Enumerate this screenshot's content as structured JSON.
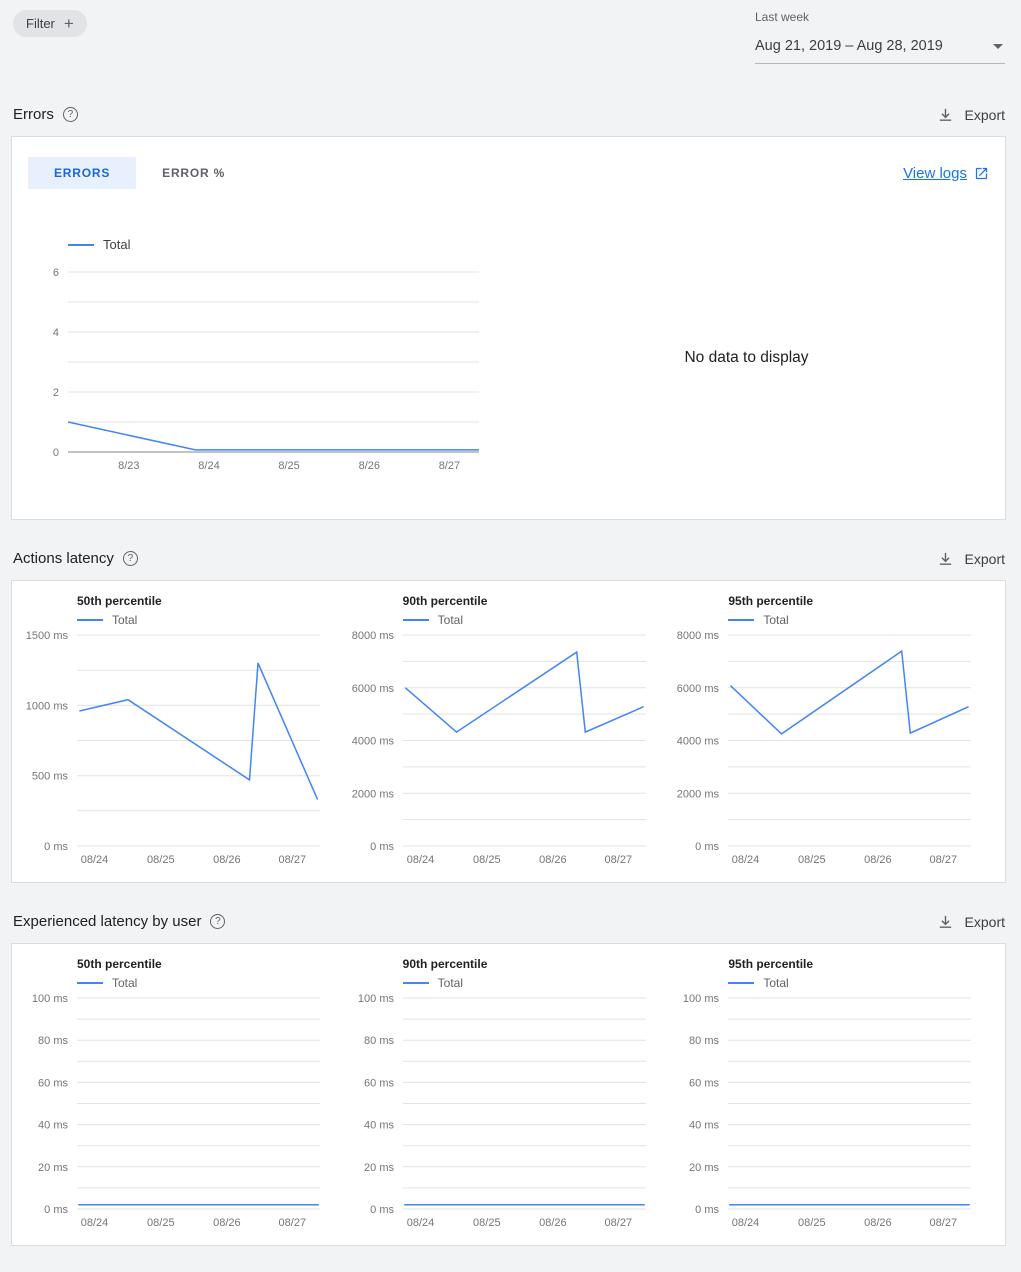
{
  "toolbar": {
    "filter_label": "Filter",
    "period_label": "Last week",
    "date_range": "Aug 21, 2019 – Aug 28, 2019"
  },
  "sections": {
    "errors": {
      "title": "Errors",
      "export_label": "Export",
      "tab_errors": "ERRORS",
      "tab_error_percent": "ERROR %",
      "view_logs": "View logs",
      "no_data": "No data to display"
    },
    "actions_latency": {
      "title": "Actions latency",
      "export_label": "Export"
    },
    "experienced_latency": {
      "title": "Experienced latency by user",
      "export_label": "Export"
    }
  },
  "colors": {
    "accent_blue": "#4285f4",
    "link_blue": "#1a73e8",
    "tab_active_bg": "#e8f0fe",
    "tab_active_text": "#1967d2"
  },
  "chart_data": [
    {
      "id": "errors-total",
      "type": "line",
      "title": "Errors",
      "ylim": [
        0,
        6
      ],
      "ylabel_step": 2,
      "ygrid_step": 1,
      "yunit": "",
      "axis_line": true,
      "x_labels": [
        "8/23",
        "8/24",
        "8/25",
        "8/26",
        "8/27"
      ],
      "x_pos": [
        0.148,
        0.343,
        0.538,
        0.733,
        0.928
      ],
      "series": [
        {
          "name": "Total",
          "color": "#4285f4",
          "points": [
            [
              0,
              1.0
            ],
            [
              0.31,
              0.07
            ],
            [
              1,
              0.07
            ]
          ]
        }
      ]
    },
    {
      "id": "actions-latency-p50",
      "type": "line",
      "title": "50th percentile",
      "ylim": [
        0,
        1500
      ],
      "ylabel_step": 500,
      "ygrid_step": 250,
      "yunit": " ms",
      "axis_line": false,
      "x_labels": [
        "08/24",
        "08/25",
        "08/26",
        "08/27"
      ],
      "x_pos": [
        0.072,
        0.345,
        0.617,
        0.886
      ],
      "series": [
        {
          "name": "Total",
          "color": "#4285f4",
          "points": [
            [
              0.01,
              960
            ],
            [
              0.21,
              1040
            ],
            [
              0.71,
              470
            ],
            [
              0.745,
              1300
            ],
            [
              0.99,
              330
            ]
          ]
        }
      ]
    },
    {
      "id": "actions-latency-p90",
      "type": "line",
      "title": "90th percentile",
      "ylim": [
        0,
        8000
      ],
      "ylabel_step": 2000,
      "ygrid_step": 1000,
      "yunit": " ms",
      "axis_line": false,
      "x_labels": [
        "08/24",
        "08/25",
        "08/26",
        "08/27"
      ],
      "x_pos": [
        0.072,
        0.345,
        0.617,
        0.886
      ],
      "series": [
        {
          "name": "Total",
          "color": "#4285f4",
          "points": [
            [
              0.01,
              6000
            ],
            [
              0.22,
              4320
            ],
            [
              0.715,
              7350
            ],
            [
              0.75,
              4320
            ],
            [
              0.99,
              5280
            ]
          ]
        }
      ]
    },
    {
      "id": "actions-latency-p95",
      "type": "line",
      "title": "95th percentile",
      "ylim": [
        0,
        8000
      ],
      "ylabel_step": 2000,
      "ygrid_step": 1000,
      "yunit": " ms",
      "axis_line": false,
      "x_labels": [
        "08/24",
        "08/25",
        "08/26",
        "08/27"
      ],
      "x_pos": [
        0.072,
        0.345,
        0.617,
        0.886
      ],
      "series": [
        {
          "name": "Total",
          "color": "#4285f4",
          "points": [
            [
              0.01,
              6080
            ],
            [
              0.22,
              4250
            ],
            [
              0.715,
              7390
            ],
            [
              0.75,
              4280
            ],
            [
              0.99,
              5280
            ]
          ]
        }
      ]
    },
    {
      "id": "experienced-latency-p50",
      "type": "line",
      "title": "50th percentile",
      "ylim": [
        0,
        100
      ],
      "ylabel_step": 20,
      "ygrid_step": 10,
      "yunit": " ms",
      "axis_line": false,
      "x_labels": [
        "08/24",
        "08/25",
        "08/26",
        "08/27"
      ],
      "x_pos": [
        0.072,
        0.345,
        0.617,
        0.886
      ],
      "series": [
        {
          "name": "Total",
          "color": "#4285f4",
          "points": [
            [
              0.005,
              2
            ],
            [
              0.995,
              2
            ]
          ]
        }
      ]
    },
    {
      "id": "experienced-latency-p90",
      "type": "line",
      "title": "90th percentile",
      "ylim": [
        0,
        100
      ],
      "ylabel_step": 20,
      "ygrid_step": 10,
      "yunit": " ms",
      "axis_line": false,
      "x_labels": [
        "08/24",
        "08/25",
        "08/26",
        "08/27"
      ],
      "x_pos": [
        0.072,
        0.345,
        0.617,
        0.886
      ],
      "series": [
        {
          "name": "Total",
          "color": "#4285f4",
          "points": [
            [
              0.005,
              2
            ],
            [
              0.995,
              2
            ]
          ]
        }
      ]
    },
    {
      "id": "experienced-latency-p95",
      "type": "line",
      "title": "95th percentile",
      "ylim": [
        0,
        100
      ],
      "ylabel_step": 20,
      "ygrid_step": 10,
      "yunit": " ms",
      "axis_line": false,
      "x_labels": [
        "08/24",
        "08/25",
        "08/26",
        "08/27"
      ],
      "x_pos": [
        0.072,
        0.345,
        0.617,
        0.886
      ],
      "series": [
        {
          "name": "Total",
          "color": "#4285f4",
          "points": [
            [
              0.005,
              2
            ],
            [
              0.995,
              2
            ]
          ]
        }
      ]
    }
  ]
}
